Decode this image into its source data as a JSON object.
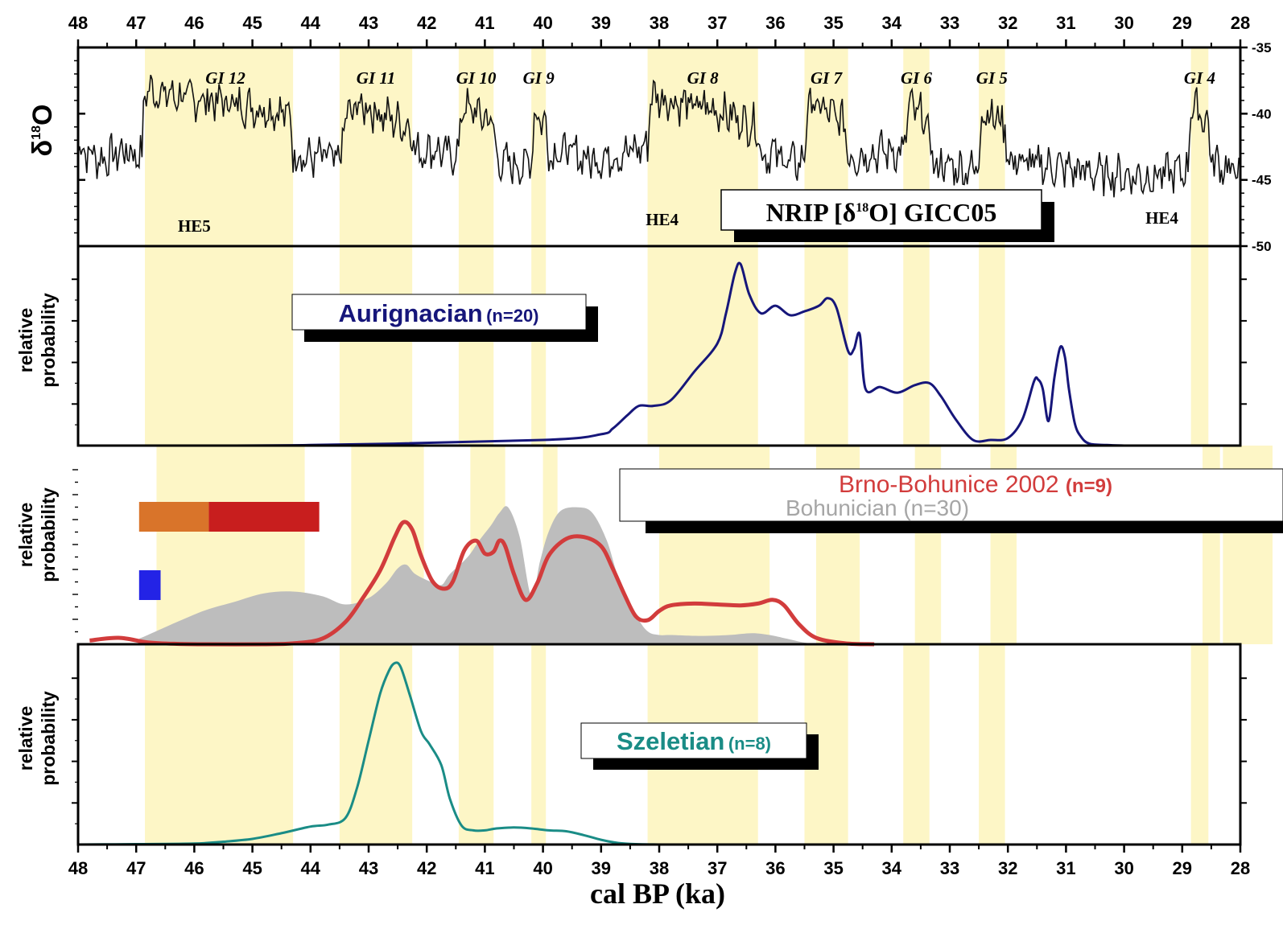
{
  "chart_data": {
    "type": "line",
    "xlabel": "cal BP (ka)",
    "xlim": [
      48,
      28
    ],
    "x_ticks": [
      "48",
      "47",
      "46",
      "45",
      "44",
      "43",
      "42",
      "41",
      "40",
      "39",
      "38",
      "37",
      "36",
      "35",
      "34",
      "33",
      "32",
      "31",
      "30",
      "29",
      "28"
    ],
    "colors": {
      "interstadial_band": "#fdf6c6",
      "d18o": "#111111",
      "aurignacian": "#16167a",
      "brno": "#d23c3c",
      "bohunician": "#bdbdbd",
      "szeletian": "#1a8c86",
      "bar_orange": "#d9742a",
      "bar_red": "#c81e1e",
      "bar_blue": "#2323e6"
    },
    "interstadials": [
      {
        "label": "GI 12",
        "start": 46.85,
        "end": 44.3
      },
      {
        "label": "GI 11",
        "start": 43.5,
        "end": 42.25
      },
      {
        "label": "GI 10",
        "start": 41.45,
        "end": 40.85
      },
      {
        "label": "GI 9",
        "start": 40.2,
        "end": 39.95
      },
      {
        "label": "GI 8",
        "start": 38.2,
        "end": 36.3
      },
      {
        "label": "GI 7",
        "start": 35.5,
        "end": 34.75
      },
      {
        "label": "GI 6",
        "start": 33.8,
        "end": 33.35
      },
      {
        "label": "GI 5",
        "start": 32.5,
        "end": 32.05
      },
      {
        "label": "GI 4",
        "start": 28.85,
        "end": 28.55
      }
    ],
    "heinrich_events": [
      {
        "label": "HE5",
        "x": 46.0
      },
      {
        "label": "HE4",
        "x": 37.95
      },
      {
        "label": "HE4",
        "x": 29.35
      }
    ],
    "panels": [
      {
        "id": "d18o",
        "ylabel": "δ18O",
        "ylim": [
          -50,
          -35
        ],
        "y_ticks": [
          "-35",
          "-40",
          "-45",
          "-50"
        ],
        "legend": "NRIP [δ18O]  GICC05",
        "series": [
          {
            "name": "NRIP [δ18O]  GICC05",
            "x": [
              48,
              47.6,
              47.2,
              46.9,
              46.86,
              46.7,
              46.4,
              46.0,
              45.5,
              45.0,
              44.6,
              44.35,
              44.3,
              44.0,
              43.7,
              43.5,
              43.42,
              43.2,
              43.0,
              42.7,
              42.4,
              42.25,
              42.2,
              41.9,
              41.6,
              41.45,
              41.4,
              41.2,
              41.0,
              40.85,
              40.8,
              40.6,
              40.3,
              40.2,
              40.15,
              40.0,
              39.95,
              39.9,
              39.6,
              39.2,
              38.8,
              38.4,
              38.2,
              38.15,
              37.9,
              37.6,
              37.2,
              36.9,
              36.6,
              36.3,
              36.25,
              36.0,
              35.7,
              35.5,
              35.45,
              35.2,
              35.0,
              34.8,
              34.75,
              34.7,
              34.4,
              34.0,
              33.8,
              33.7,
              33.5,
              33.35,
              33.3,
              33.0,
              32.7,
              32.5,
              32.45,
              32.3,
              32.1,
              32.05,
              32.0,
              31.6,
              31.2,
              30.8,
              30.4,
              30.0,
              29.6,
              29.2,
              28.9,
              28.85,
              28.75,
              28.6,
              28.55,
              28.5,
              28.3,
              28.0
            ],
            "y": [
              -42.5,
              -43.5,
              -42.8,
              -43.2,
              -38.2,
              -38.3,
              -38.6,
              -38.9,
              -39.1,
              -39.5,
              -39.8,
              -40.1,
              -43.0,
              -43.4,
              -43.2,
              -43.8,
              -40.6,
              -39.4,
              -39.6,
              -40.2,
              -40.8,
              -41.2,
              -43.0,
              -42.6,
              -43.2,
              -43.0,
              -39.5,
              -39.8,
              -40.3,
              -40.7,
              -43.5,
              -43.8,
              -44.0,
              -43.2,
              -40.2,
              -40.4,
              -40.8,
              -43.0,
              -42.8,
              -43.5,
              -43.2,
              -42.7,
              -42.5,
              -38.6,
              -38.9,
              -39.3,
              -39.5,
              -39.9,
              -40.5,
              -41.0,
              -43.2,
              -43.0,
              -43.8,
              -43.5,
              -39.2,
              -39.6,
              -40.2,
              -40.8,
              -43.0,
              -43.3,
              -43.0,
              -42.8,
              -43.0,
              -39.5,
              -40.1,
              -41.3,
              -43.8,
              -44.0,
              -44.2,
              -44.0,
              -39.6,
              -40.1,
              -40.6,
              -41.0,
              -43.5,
              -43.8,
              -44.0,
              -44.3,
              -44.5,
              -44.7,
              -44.8,
              -44.5,
              -44.3,
              -39.2,
              -39.7,
              -40.4,
              -41.0,
              -43.5,
              -44.0,
              -44.5
            ]
          }
        ]
      },
      {
        "id": "aurignacian",
        "ylabel": "relative probability",
        "legend": {
          "name": "Aurignacian",
          "n": "(n=20)"
        },
        "series": [
          {
            "name": "Aurignacian",
            "x": [
              48,
              44,
              40,
              39,
              38.8,
              38.55,
              38.35,
              38.1,
              37.8,
              37.4,
              37.0,
              36.85,
              36.7,
              36.6,
              36.45,
              36.25,
              36.0,
              35.75,
              35.5,
              35.25,
              35.1,
              34.95,
              34.75,
              34.65,
              34.55,
              34.45,
              34.2,
              33.9,
              33.6,
              33.35,
              33.15,
              32.9,
              32.6,
              32.3,
              32.0,
              31.75,
              31.55,
              31.48,
              31.4,
              31.3,
              31.2,
              31.1,
              31.02,
              30.95,
              30.85,
              30.75,
              30.6,
              30.3,
              30.0
            ],
            "y": [
              0,
              0.003,
              0.03,
              0.06,
              0.09,
              0.16,
              0.21,
              0.21,
              0.24,
              0.39,
              0.54,
              0.7,
              0.91,
              0.96,
              0.8,
              0.7,
              0.74,
              0.69,
              0.71,
              0.74,
              0.78,
              0.73,
              0.5,
              0.51,
              0.59,
              0.3,
              0.31,
              0.28,
              0.32,
              0.33,
              0.26,
              0.14,
              0.03,
              0.03,
              0.04,
              0.14,
              0.34,
              0.35,
              0.3,
              0.13,
              0.36,
              0.52,
              0.47,
              0.3,
              0.12,
              0.05,
              0.01,
              0.003,
              0
            ]
          }
        ]
      },
      {
        "id": "bohunice",
        "ylabel": "relative probability",
        "legend": [
          {
            "name": "Brno-Bohunice 2002",
            "n": "(n=9)"
          },
          {
            "name": "Bohunician",
            "n": "(n=30)"
          }
        ],
        "series": [
          {
            "name": "Bohunician",
            "x": [
              47.15,
              47.0,
              46.5,
              46.0,
              45.5,
              45.0,
              44.5,
              44.0,
              43.6,
              43.2,
              42.9,
              42.7,
              42.55,
              42.4,
              42.15,
              41.95,
              41.8,
              41.5,
              41.3,
              41.1,
              40.95,
              40.8,
              40.6,
              40.4,
              40.25,
              40.1,
              39.9,
              39.6,
              39.35,
              39.1,
              38.9,
              38.6,
              38.4,
              38.2,
              38.0,
              37.5,
              37.0,
              36.6,
              36.3,
              36.0,
              35.6,
              35.0
            ],
            "y": [
              0.03,
              0.05,
              0.12,
              0.185,
              0.23,
              0.275,
              0.285,
              0.26,
              0.215,
              0.25,
              0.33,
              0.41,
              0.43,
              0.38,
              0.34,
              0.32,
              0.38,
              0.47,
              0.56,
              0.64,
              0.71,
              0.74,
              0.58,
              0.26,
              0.45,
              0.61,
              0.72,
              0.74,
              0.71,
              0.56,
              0.36,
              0.16,
              0.07,
              0.05,
              0.05,
              0.045,
              0.05,
              0.06,
              0.05,
              0.03,
              0.005,
              0
            ]
          },
          {
            "name": "Brno-Bohunice 2002",
            "x": [
              48,
              47.5,
              47.0,
              46.5,
              46.0,
              45.0,
              44.5,
              44.0,
              43.6,
              43.3,
              43.0,
              42.75,
              42.6,
              42.45,
              42.3,
              42.1,
              41.9,
              41.75,
              41.55,
              41.35,
              41.2,
              41.05,
              40.95,
              40.85,
              40.7,
              40.5,
              40.3,
              40.1,
              39.8,
              39.5,
              39.2,
              39.0,
              38.8,
              38.6,
              38.4,
              38.2,
              38.0,
              37.6,
              37.2,
              36.8,
              36.5,
              36.25,
              36.05,
              35.8,
              35.5,
              35.0,
              34.5
            ],
            "y": [
              0.02,
              0.035,
              0.01,
              0.002,
              0,
              0,
              0.005,
              0.03,
              0.12,
              0.25,
              0.4,
              0.58,
              0.66,
              0.62,
              0.48,
              0.34,
              0.3,
              0.34,
              0.51,
              0.56,
              0.49,
              0.5,
              0.56,
              0.53,
              0.38,
              0.24,
              0.33,
              0.48,
              0.57,
              0.58,
              0.53,
              0.41,
              0.27,
              0.15,
              0.13,
              0.18,
              0.21,
              0.22,
              0.215,
              0.21,
              0.22,
              0.24,
              0.21,
              0.11,
              0.035,
              0.005,
              0
            ]
          }
        ],
        "bars": [
          {
            "color": "orange",
            "from": 47.15,
            "to": 45.95,
            "row": 1
          },
          {
            "color": "red",
            "from": 45.95,
            "to": 44.05,
            "row": 1
          },
          {
            "color": "blue",
            "from": 47.15,
            "to": 46.78,
            "row": 2
          }
        ]
      },
      {
        "id": "szeletian",
        "ylabel": "relative probability",
        "legend": {
          "name": "Szeletian",
          "n": "(n=8)"
        },
        "series": [
          {
            "name": "Szeletian",
            "x": [
              48,
              47,
              46,
              45.5,
              45.0,
              44.5,
              44.0,
              43.7,
              43.4,
              43.2,
              43.0,
              42.8,
              42.65,
              42.55,
              42.45,
              42.3,
              42.1,
              41.95,
              41.75,
              41.6,
              41.4,
              41.2,
              41.0,
              40.8,
              40.5,
              40.2,
              39.9,
              39.6,
              39.3,
              39.0,
              38.7,
              38.4,
              38.0
            ],
            "y": [
              0,
              0.002,
              0.005,
              0.015,
              0.03,
              0.06,
              0.095,
              0.105,
              0.14,
              0.3,
              0.55,
              0.8,
              0.92,
              0.96,
              0.94,
              0.8,
              0.6,
              0.53,
              0.42,
              0.24,
              0.1,
              0.075,
              0.075,
              0.085,
              0.09,
              0.085,
              0.075,
              0.07,
              0.05,
              0.025,
              0.008,
              0.002,
              0
            ]
          }
        ]
      }
    ]
  }
}
